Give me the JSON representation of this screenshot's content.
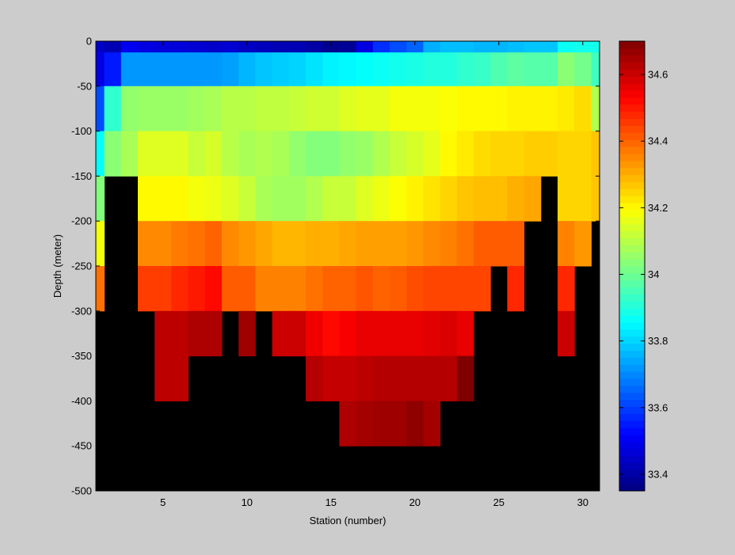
{
  "chart_data": {
    "type": "heatmap",
    "title": "",
    "xlabel": "Station (number)",
    "ylabel": "Depth (meter)",
    "xlim": [
      1,
      31
    ],
    "ylim": [
      -500,
      0
    ],
    "x_ticks": [
      5,
      10,
      15,
      20,
      25,
      30
    ],
    "y_ticks": [
      0,
      -50,
      -100,
      -150,
      -200,
      -250,
      -300,
      -350,
      -400,
      -450,
      -500
    ],
    "stations": [
      1,
      2,
      3,
      4,
      5,
      6,
      7,
      8,
      9,
      10,
      11,
      12,
      13,
      14,
      15,
      16,
      17,
      18,
      19,
      20,
      21,
      22,
      23,
      24,
      25,
      26,
      27,
      28,
      29,
      30,
      31
    ],
    "depth_bins": [
      0,
      -25,
      -75,
      -125,
      -175,
      -225,
      -275,
      -325,
      -375,
      -425,
      -475
    ],
    "nodata_color": "#000000",
    "background_color": "#cccccc",
    "colorbar": {
      "range": [
        33.35,
        34.7
      ],
      "ticks": [
        33.4,
        33.6,
        33.8,
        34,
        34.2,
        34.4,
        34.6
      ],
      "tick_labels": [
        "33.4",
        "33.6",
        "33.8",
        "34",
        "34.2",
        "34.4",
        "34.6"
      ],
      "colormap": "jet-like"
    },
    "values": [
      [
        33.45,
        33.42,
        33.5,
        33.48,
        33.47,
        33.47,
        33.46,
        33.45,
        33.46,
        33.44,
        33.43,
        33.42,
        33.42,
        33.4,
        33.37,
        33.38,
        33.48,
        33.58,
        33.62,
        33.65,
        33.75,
        33.77,
        33.77,
        33.76,
        33.76,
        33.77,
        33.78,
        33.78,
        33.87,
        33.88,
        33.88
      ],
      [
        33.48,
        33.55,
        33.72,
        33.72,
        33.72,
        33.72,
        33.72,
        33.72,
        33.73,
        33.76,
        33.78,
        33.79,
        33.8,
        33.82,
        33.84,
        33.85,
        33.86,
        33.87,
        33.88,
        33.89,
        33.9,
        33.9,
        33.92,
        33.93,
        33.96,
        33.98,
        33.97,
        33.97,
        34.04,
        34.01,
        33.94
      ],
      [
        33.62,
        33.92,
        34.05,
        34.06,
        34.06,
        34.06,
        34.07,
        34.08,
        34.1,
        34.1,
        34.11,
        34.11,
        34.12,
        34.13,
        34.13,
        34.15,
        34.16,
        34.16,
        34.18,
        34.18,
        34.18,
        34.19,
        34.2,
        34.2,
        34.2,
        34.21,
        34.21,
        34.21,
        34.22,
        34.24,
        34.09
      ],
      [
        33.86,
        34.04,
        34.08,
        34.15,
        34.15,
        34.15,
        34.12,
        34.14,
        34.1,
        34.08,
        34.09,
        34.08,
        34.05,
        34.03,
        34.03,
        34.05,
        34.06,
        34.09,
        34.12,
        34.14,
        34.16,
        34.2,
        34.22,
        34.24,
        34.25,
        34.25,
        34.26,
        34.26,
        34.25,
        34.25,
        34.27
      ],
      [
        34.03,
        null,
        null,
        34.2,
        34.2,
        34.2,
        34.18,
        34.17,
        34.15,
        34.12,
        34.08,
        34.07,
        34.07,
        34.09,
        34.12,
        34.12,
        34.15,
        34.17,
        34.19,
        34.21,
        34.23,
        34.25,
        34.27,
        34.28,
        34.28,
        34.3,
        34.31,
        null,
        34.25,
        34.25,
        34.27
      ],
      [
        34.18,
        null,
        null,
        34.35,
        34.35,
        34.37,
        34.38,
        34.4,
        34.35,
        34.33,
        34.31,
        34.29,
        34.29,
        34.3,
        34.3,
        34.31,
        34.32,
        34.32,
        34.32,
        34.33,
        34.35,
        34.36,
        34.38,
        34.41,
        34.41,
        34.41,
        null,
        null,
        34.36,
        34.33,
        null
      ],
      [
        34.38,
        null,
        null,
        34.45,
        34.45,
        34.48,
        34.5,
        34.52,
        34.41,
        34.41,
        34.36,
        34.36,
        34.36,
        34.38,
        34.4,
        34.4,
        34.42,
        34.4,
        34.41,
        34.43,
        34.44,
        34.44,
        34.44,
        34.44,
        null,
        34.48,
        null,
        null,
        34.48,
        null,
        null
      ],
      [
        null,
        null,
        null,
        null,
        34.62,
        34.62,
        34.64,
        34.64,
        null,
        34.66,
        null,
        34.6,
        34.6,
        34.55,
        34.52,
        34.54,
        34.56,
        34.56,
        34.56,
        34.56,
        34.57,
        34.58,
        34.56,
        null,
        null,
        null,
        null,
        null,
        34.6,
        null,
        null
      ],
      [
        null,
        null,
        null,
        null,
        34.62,
        34.62,
        null,
        null,
        null,
        null,
        null,
        null,
        null,
        34.63,
        34.61,
        34.61,
        34.62,
        34.63,
        34.63,
        34.63,
        34.63,
        34.63,
        34.7,
        null,
        null,
        null,
        null,
        null,
        null,
        null,
        null
      ],
      [
        null,
        null,
        null,
        null,
        null,
        null,
        null,
        null,
        null,
        null,
        null,
        null,
        null,
        null,
        null,
        34.64,
        34.65,
        34.66,
        34.66,
        34.68,
        34.65,
        null,
        null,
        null,
        null,
        null,
        null,
        null,
        null,
        null,
        null
      ],
      [
        null,
        null,
        null,
        null,
        null,
        null,
        null,
        null,
        null,
        null,
        null,
        null,
        null,
        null,
        null,
        null,
        null,
        null,
        null,
        null,
        null,
        null,
        null,
        null,
        null,
        null,
        null,
        null,
        null,
        null,
        null
      ]
    ]
  }
}
